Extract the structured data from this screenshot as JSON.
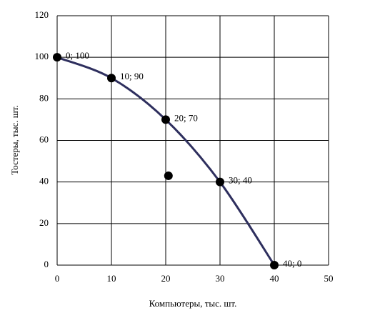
{
  "chart_data": {
    "type": "scatter",
    "x_label": "Компьютеры, тыс. шт.",
    "y_label": "Тостеры, тыс. шт.",
    "series": [
      {
        "color": "#2e2f5e",
        "marker_color": "#000000",
        "x": [
          0,
          10,
          20,
          30,
          40
        ],
        "values": [
          100,
          90,
          70,
          40,
          0
        ],
        "value_labels": [
          "0; 100",
          "10; 90",
          "20; 70",
          "30; 40",
          "40; 0"
        ],
        "smooth": true
      },
      {
        "marker_color": "#000000",
        "x": [
          20.5
        ],
        "values": [
          43
        ]
      }
    ],
    "xlim": [
      0,
      50
    ],
    "xticks": [
      0,
      10,
      20,
      30,
      40,
      50
    ],
    "ylim": [
      0,
      120
    ],
    "yticks": [
      0,
      20,
      40,
      60,
      80,
      100,
      120
    ],
    "grid": true
  }
}
